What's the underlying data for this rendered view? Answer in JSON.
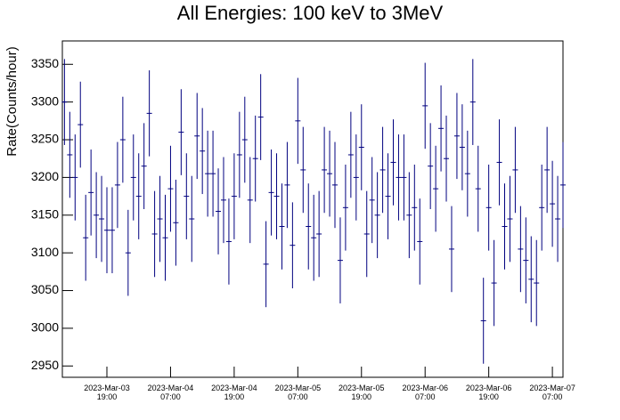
{
  "chart_data": {
    "type": "errorbar",
    "title": "All Energies:  100 keV to 3MeV",
    "y_label": "Rate(Counts/hour)",
    "color": "#00007f",
    "x": [
      "2023-03-03 11:00",
      "2023-03-03 12:00",
      "2023-03-03 13:00",
      "2023-03-03 14:00",
      "2023-03-03 15:00",
      "2023-03-03 16:00",
      "2023-03-03 17:00",
      "2023-03-03 18:00",
      "2023-03-03 19:00",
      "2023-03-03 20:00",
      "2023-03-03 21:00",
      "2023-03-03 22:00",
      "2023-03-03 23:00",
      "2023-03-04 00:00",
      "2023-03-04 01:00",
      "2023-03-04 02:00",
      "2023-03-04 03:00",
      "2023-03-04 04:00",
      "2023-03-04 05:00",
      "2023-03-04 06:00",
      "2023-03-04 07:00",
      "2023-03-04 08:00",
      "2023-03-04 09:00",
      "2023-03-04 10:00",
      "2023-03-04 11:00",
      "2023-03-04 12:00",
      "2023-03-04 13:00",
      "2023-03-04 14:00",
      "2023-03-04 15:00",
      "2023-03-04 16:00",
      "2023-03-04 17:00",
      "2023-03-04 18:00",
      "2023-03-04 19:00",
      "2023-03-04 20:00",
      "2023-03-04 21:00",
      "2023-03-04 22:00",
      "2023-03-04 23:00",
      "2023-03-05 00:00",
      "2023-03-05 01:00",
      "2023-03-05 02:00",
      "2023-03-05 03:00",
      "2023-03-05 04:00",
      "2023-03-05 05:00",
      "2023-03-05 06:00",
      "2023-03-05 07:00",
      "2023-03-05 08:00",
      "2023-03-05 09:00",
      "2023-03-05 10:00",
      "2023-03-05 11:00",
      "2023-03-05 12:00",
      "2023-03-05 13:00",
      "2023-03-05 14:00",
      "2023-03-05 15:00",
      "2023-03-05 16:00",
      "2023-03-05 17:00",
      "2023-03-05 18:00",
      "2023-03-05 19:00",
      "2023-03-05 20:00",
      "2023-03-05 21:00",
      "2023-03-05 22:00",
      "2023-03-05 23:00",
      "2023-03-06 00:00",
      "2023-03-06 01:00",
      "2023-03-06 02:00",
      "2023-03-06 03:00",
      "2023-03-06 04:00",
      "2023-03-06 05:00",
      "2023-03-06 06:00",
      "2023-03-06 07:00",
      "2023-03-06 08:00",
      "2023-03-06 09:00",
      "2023-03-06 10:00",
      "2023-03-06 11:00",
      "2023-03-06 12:00",
      "2023-03-06 13:00",
      "2023-03-06 14:00",
      "2023-03-06 15:00",
      "2023-03-06 16:00",
      "2023-03-06 17:00",
      "2023-03-06 18:00",
      "2023-03-06 19:00",
      "2023-03-06 20:00",
      "2023-03-06 21:00",
      "2023-03-06 22:00",
      "2023-03-06 23:00",
      "2023-03-07 00:00",
      "2023-03-07 01:00",
      "2023-03-07 02:00",
      "2023-03-07 03:00",
      "2023-03-07 04:00",
      "2023-03-07 05:00",
      "2023-03-07 06:00",
      "2023-03-07 07:00",
      "2023-03-07 08:00",
      "2023-03-07 09:00"
    ],
    "values": [
      3300,
      3230,
      3200,
      3270,
      3120,
      3180,
      3150,
      3145,
      3130,
      3130,
      3190,
      3250,
      3100,
      3200,
      3175,
      3215,
      3285,
      3125,
      3145,
      3120,
      3185,
      3140,
      3260,
      3175,
      3145,
      3255,
      3235,
      3205,
      3205,
      3155,
      3170,
      3115,
      3175,
      3230,
      3250,
      3170,
      3225,
      3280,
      3085,
      3180,
      3175,
      3135,
      3190,
      3110,
      3275,
      3210,
      3135,
      3120,
      3125,
      3210,
      3205,
      3190,
      3090,
      3160,
      3230,
      3200,
      3240,
      3125,
      3170,
      3150,
      3210,
      3175,
      3220,
      3200,
      3200,
      3150,
      3160,
      3115,
      3295,
      3215,
      3185,
      3265,
      3225,
      3105,
      3255,
      3240,
      3205,
      3300,
      3185,
      3010,
      3160,
      3060,
      3220,
      3135,
      3145,
      3210,
      3105,
      3090,
      3065,
      3060,
      3160,
      3210,
      3165,
      3145,
      3190
    ],
    "errors": [
      57,
      57,
      57,
      57,
      57,
      57,
      57,
      57,
      57,
      57,
      57,
      57,
      57,
      57,
      57,
      57,
      57,
      57,
      57,
      57,
      57,
      57,
      57,
      57,
      57,
      57,
      57,
      57,
      57,
      57,
      57,
      57,
      57,
      57,
      57,
      57,
      57,
      57,
      57,
      57,
      57,
      57,
      57,
      57,
      57,
      57,
      57,
      57,
      57,
      57,
      57,
      57,
      57,
      57,
      57,
      57,
      57,
      57,
      57,
      57,
      57,
      57,
      57,
      57,
      57,
      57,
      57,
      57,
      57,
      57,
      57,
      57,
      57,
      57,
      57,
      57,
      57,
      57,
      57,
      57,
      57,
      57,
      57,
      57,
      57,
      57,
      57,
      57,
      57,
      57,
      57,
      57,
      57,
      57,
      57
    ],
    "xlim": [
      "2023-03-03 10:36",
      "2023-03-07 09:00"
    ],
    "xticks": [
      {
        "value": "2023-03-03 19:00",
        "label": "2023-Mar-03\n19:00"
      },
      {
        "value": "2023-03-04 07:00",
        "label": "2023-Mar-04\n07:00"
      },
      {
        "value": "2023-03-04 19:00",
        "label": "2023-Mar-04\n19:00"
      },
      {
        "value": "2023-03-05 07:00",
        "label": "2023-Mar-05\n07:00"
      },
      {
        "value": "2023-03-05 19:00",
        "label": "2023-Mar-05\n19:00"
      },
      {
        "value": "2023-03-06 07:00",
        "label": "2023-Mar-06\n07:00"
      },
      {
        "value": "2023-03-06 19:00",
        "label": "2023-Mar-06\n19:00"
      },
      {
        "value": "2023-03-07 07:00",
        "label": "2023-Mar-07\n07:00"
      }
    ],
    "ylim": [
      2935,
      3381
    ],
    "yticks": [
      2950,
      3000,
      3050,
      3100,
      3150,
      3200,
      3250,
      3300,
      3350
    ]
  }
}
